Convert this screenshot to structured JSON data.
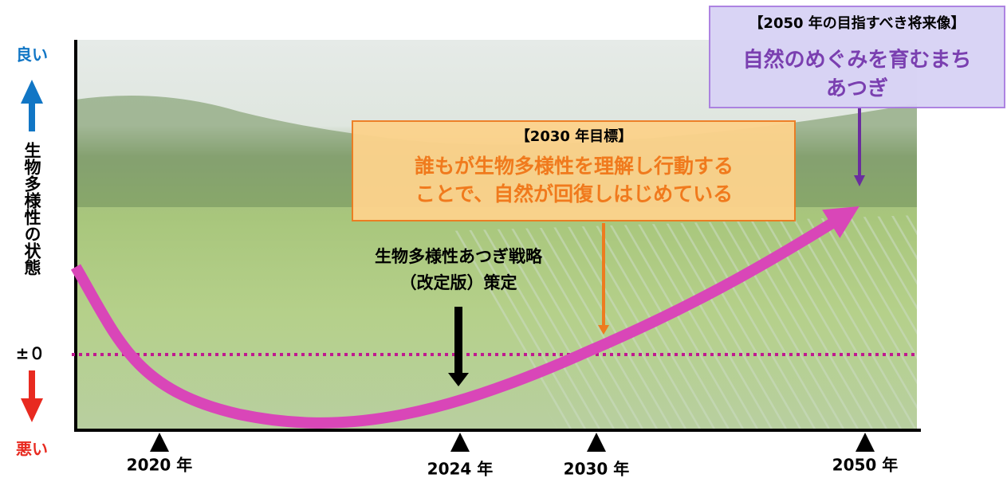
{
  "y_axis": {
    "good": "良い",
    "bad": "悪い",
    "label": "生物多様性の状態",
    "zero": "±０"
  },
  "x_axis": {
    "labels": [
      "2020 年",
      "2024 年",
      "2030 年",
      "2050 年"
    ]
  },
  "strategy": {
    "lines": [
      "生物多様性あつぎ戦略",
      "（改定版）策定"
    ]
  },
  "goal_2030": {
    "header": "【2030 年目標】",
    "lines": [
      "誰もが生物多様性を理解し行動する",
      "ことで、自然が回復しはじめている"
    ]
  },
  "vision_2050": {
    "header": "【2050 年の目指すべき将来像】",
    "lines": [
      "自然のめぐみを育むまち",
      "あつぎ"
    ]
  }
}
